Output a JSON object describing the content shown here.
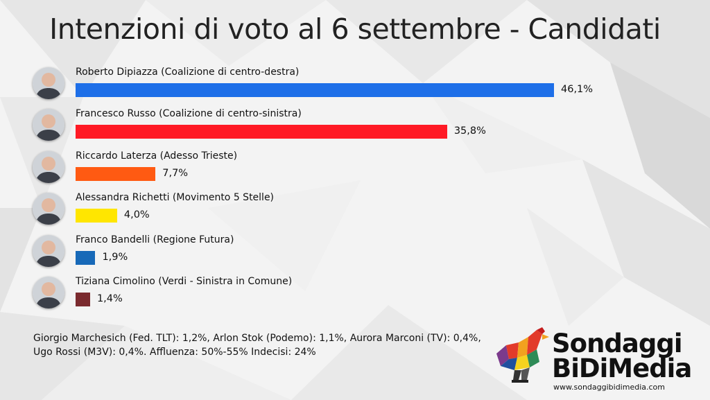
{
  "chart_data": {
    "type": "bar",
    "orientation": "horizontal",
    "title": "Intenzioni di voto al 6 settembre - Candidati",
    "xlim": [
      0,
      46.1
    ],
    "categories": [
      "Roberto Dipiazza (Coalizione di centro-destra)",
      "Francesco Russo (Coalizione di centro-sinistra)",
      "Riccardo Laterza (Adesso Trieste)",
      "Alessandra Richetti (Movimento 5 Stelle)",
      "Franco Bandelli (Regione Futura)",
      "Tiziana Cimolino (Verdi - Sinistra in Comune)"
    ],
    "values": [
      46.1,
      35.8,
      7.7,
      4.0,
      1.9,
      1.4
    ],
    "value_labels": [
      "46,1%",
      "35,8%",
      "7,7%",
      "4,0%",
      "1,9%",
      "1,4%"
    ],
    "colors": [
      "#1e6fe8",
      "#ff1a25",
      "#ff5a12",
      "#ffe600",
      "#1769b8",
      "#7a2a2e"
    ],
    "grid": false,
    "legend": "none"
  },
  "footer": {
    "line1": "Giorgio Marchesich (Fed. TLT): 1,2%, Arlon Stok (Podemo): 1,1%, Aurora Marconi (TV): 0,4%,",
    "line2": "Ugo Rossi (M3V): 0,4%. Affluenza: 50%-55% Indecisi: 24%"
  },
  "logo": {
    "line1": "Sondaggi",
    "line2": "BiDiMedia",
    "url": "www.sondaggibidimedia.com",
    "icon": "rooster-icon"
  },
  "avatar_icon": "candidate-photo-icon"
}
